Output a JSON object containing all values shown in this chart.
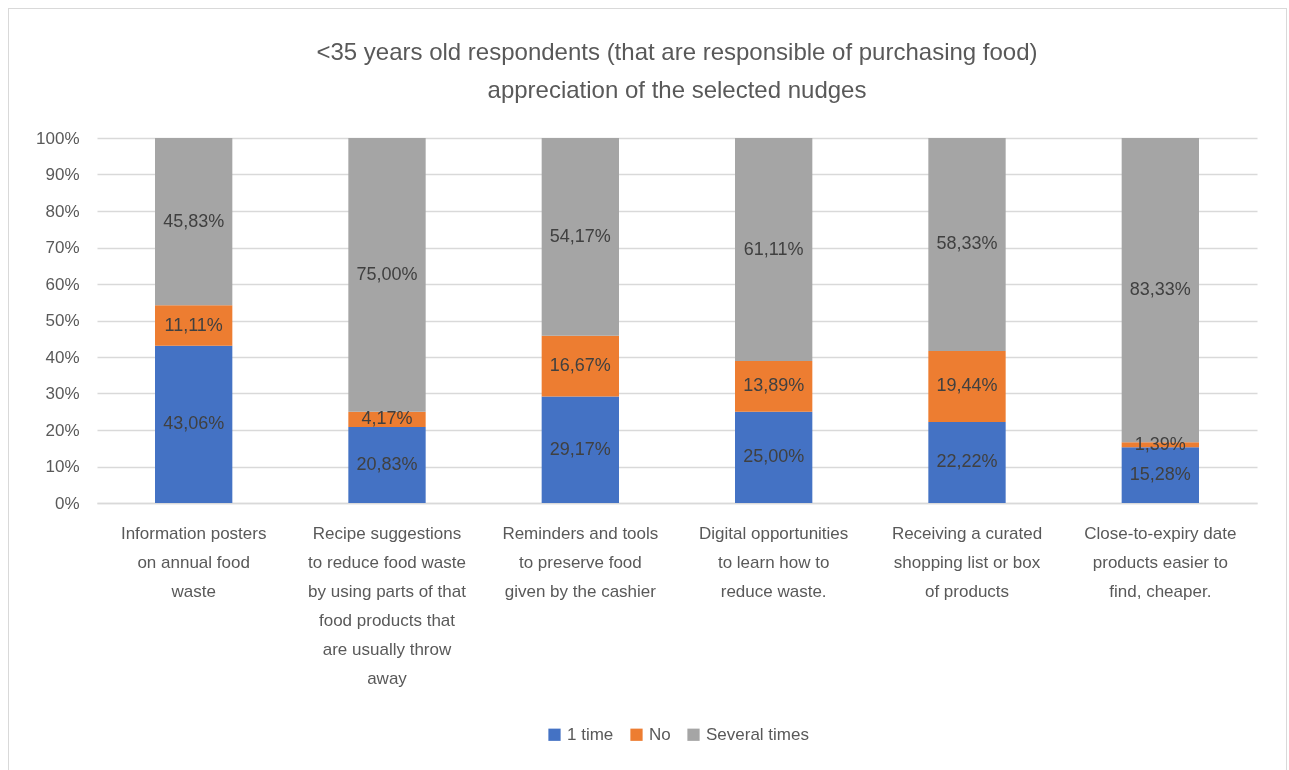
{
  "chart_data": {
    "type": "bar",
    "title": "<35 years old respondents (that are responsible of purchasing food) appreciation of the selected nudges",
    "categories": [
      "Information posters on annual food waste",
      "Recipe suggestions to reduce food waste by using parts of that food products that are usually throw away",
      "Reminders and tools to preserve food given by the cashier",
      "Digital opportunities to learn how to reduce waste.",
      "Receiving a curated shopping list or box of products",
      "Close-to-expiry date products easier to find, cheaper."
    ],
    "series": [
      {
        "name": "1 time",
        "color": "#4472c4",
        "values": [
          43.06,
          20.83,
          29.17,
          25.0,
          22.22,
          15.28
        ],
        "value_labels": [
          "43,06%",
          "20,83%",
          "29,17%",
          "25,00%",
          "22,22%",
          "15,28%"
        ]
      },
      {
        "name": "No",
        "color": "#ed7d31",
        "values": [
          11.11,
          4.17,
          16.67,
          13.89,
          19.44,
          1.39
        ],
        "value_labels": [
          "11,11%",
          "4,17%",
          "16,67%",
          "13,89%",
          "19,44%",
          "1,39%"
        ]
      },
      {
        "name": "Several times",
        "color": "#a5a5a5",
        "values": [
          45.83,
          75.0,
          54.17,
          61.11,
          58.33,
          83.33
        ],
        "value_labels": [
          "45,83%",
          "75,00%",
          "54,17%",
          "61,11%",
          "58,33%",
          "83,33%"
        ]
      }
    ],
    "stacked": true,
    "ylim": [
      0,
      100
    ],
    "yticks": [
      {
        "value": 0,
        "label": "0%"
      },
      {
        "value": 10,
        "label": "10%"
      },
      {
        "value": 20,
        "label": "20%"
      },
      {
        "value": 30,
        "label": "30%"
      },
      {
        "value": 40,
        "label": "40%"
      },
      {
        "value": 50,
        "label": "50%"
      },
      {
        "value": 60,
        "label": "60%"
      },
      {
        "value": 70,
        "label": "70%"
      },
      {
        "value": 80,
        "label": "80%"
      },
      {
        "value": 90,
        "label": "90%"
      },
      {
        "value": 100,
        "label": "100%"
      }
    ],
    "grid": "y",
    "legend": "bottom"
  }
}
